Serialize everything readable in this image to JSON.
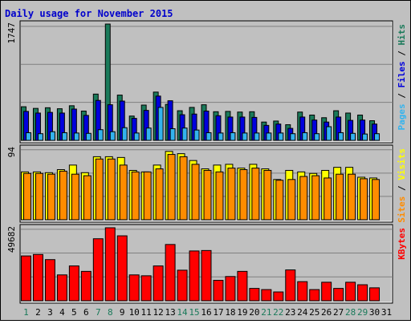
{
  "chart_data": {
    "type": "bar",
    "title": "Daily usage for November 2015",
    "categories": [
      "1",
      "2",
      "3",
      "4",
      "5",
      "6",
      "7",
      "8",
      "9",
      "10",
      "11",
      "12",
      "13",
      "14",
      "15",
      "16",
      "17",
      "18",
      "19",
      "20",
      "21",
      "22",
      "23",
      "24",
      "25",
      "26",
      "27",
      "28",
      "29",
      "30",
      "31"
    ],
    "weekend_days": [
      "1",
      "7",
      "8",
      "14",
      "15",
      "21",
      "22",
      "28",
      "29"
    ],
    "panels": [
      {
        "name": "requests",
        "ymax_label": "1747",
        "ymax": 1747,
        "axis_label_parts": [
          "Pages",
          " / ",
          "Files",
          " / ",
          "Hits"
        ],
        "series": [
          {
            "name": "Hits",
            "color": "#1a7a5a",
            "values": [
              505,
              480,
              490,
              475,
              520,
              440,
              695,
              1747,
              680,
              365,
              530,
              725,
              540,
              445,
              495,
              535,
              430,
              435,
              425,
              430,
              275,
              290,
              235,
              425,
              380,
              340,
              445,
              410,
              380,
              295,
              0
            ]
          },
          {
            "name": "Files",
            "color": "#0000dd",
            "values": [
              435,
              410,
              420,
              410,
              470,
              375,
              600,
              535,
              590,
              330,
              450,
              665,
              595,
              385,
              395,
              440,
              370,
              350,
              350,
              345,
              225,
              245,
              180,
              350,
              305,
              275,
              350,
              300,
              305,
              245,
              0
            ]
          },
          {
            "name": "Pages",
            "color": "#33b3ee",
            "values": [
              115,
              100,
              130,
              115,
              110,
              105,
              160,
              130,
              190,
              110,
              185,
              495,
              175,
              185,
              155,
              115,
              110,
              115,
              110,
              110,
              110,
              110,
              100,
              115,
              100,
              205,
              115,
              105,
              95,
              100,
              0
            ]
          }
        ]
      },
      {
        "name": "visitors",
        "ymax_label": "94",
        "ymax": 94,
        "axis_label_parts": [
          "Sites",
          " / ",
          "Visits"
        ],
        "series": [
          {
            "name": "Visits",
            "color": "#ffff00",
            "values": [
              63,
              63,
              62,
              66,
              72,
              62,
              83,
              83,
              82,
              65,
              63,
              72,
              90,
              87,
              78,
              67,
              72,
              73,
              68,
              73,
              67,
              53,
              65,
              63,
              61,
              65,
              69,
              69,
              56,
              55,
              0
            ]
          },
          {
            "name": "Sites",
            "color": "#ff8c00",
            "values": [
              61,
              61,
              60,
              64,
              60,
              58,
              80,
              80,
              72,
              63,
              63,
              67,
              86,
              83,
              73,
              65,
              63,
              68,
              66,
              68,
              65,
              52,
              53,
              57,
              58,
              55,
              60,
              60,
              54,
              53,
              0
            ]
          }
        ]
      },
      {
        "name": "kbytes",
        "ymax_label": "49682",
        "ymax": 49682,
        "axis_label_parts": [
          "KBytes"
        ],
        "series": [
          {
            "name": "KBytes",
            "color": "#ff0000",
            "values": [
              30500,
              31500,
              28000,
              17600,
              23700,
              20000,
              42200,
              49682,
              44200,
              17600,
              17000,
              23700,
              38300,
              20800,
              33900,
              34200,
              13900,
              16500,
              20000,
              8400,
              7600,
              6000,
              21000,
              13000,
              7600,
              12600,
              8400,
              12600,
              10900,
              8800,
              0
            ]
          }
        ]
      }
    ],
    "grid": true,
    "legend": "right-vertical"
  }
}
